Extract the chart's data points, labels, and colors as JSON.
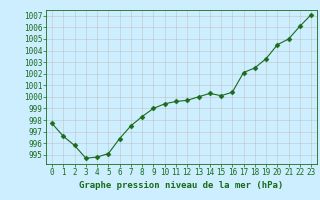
{
  "x": [
    0,
    1,
    2,
    3,
    4,
    5,
    6,
    7,
    8,
    9,
    10,
    11,
    12,
    13,
    14,
    15,
    16,
    17,
    18,
    19,
    20,
    21,
    22,
    23
  ],
  "y": [
    997.7,
    996.6,
    995.8,
    994.7,
    994.8,
    995.1,
    996.4,
    997.5,
    998.3,
    999.0,
    999.4,
    999.6,
    999.7,
    1000.0,
    1000.3,
    1000.1,
    1000.4,
    1002.1,
    1002.5,
    1003.3,
    1004.5,
    1005.0,
    1006.1,
    1007.1
  ],
  "line_color": "#1a6b1a",
  "marker_color": "#1a6b1a",
  "bg_color": "#cceeff",
  "grid_color": "#bbbbbb",
  "xlabel": "Graphe pression niveau de la mer (hPa)",
  "ylim": [
    994.2,
    1007.5
  ],
  "xlim": [
    -0.5,
    23.5
  ],
  "yticks": [
    995,
    996,
    997,
    998,
    999,
    1000,
    1001,
    1002,
    1003,
    1004,
    1005,
    1006,
    1007
  ],
  "xticks": [
    0,
    1,
    2,
    3,
    4,
    5,
    6,
    7,
    8,
    9,
    10,
    11,
    12,
    13,
    14,
    15,
    16,
    17,
    18,
    19,
    20,
    21,
    22,
    23
  ],
  "xlabel_fontsize": 6.5,
  "tick_fontsize": 5.5,
  "xlabel_color": "#1a6b1a",
  "tick_color": "#1a6b1a",
  "line_width": 0.8,
  "marker_size": 2.5
}
